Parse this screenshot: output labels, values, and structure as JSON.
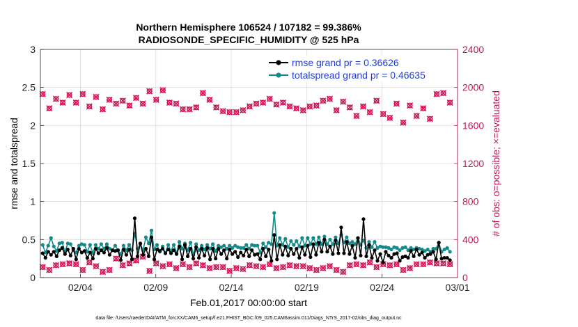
{
  "chart_data": {
    "type": "line",
    "title_line1": "Northern Hemisphere 106524 / 107182 = 99.386%",
    "title_line2": "RADIOSONDE_SPECIFIC_HUMIDITY @ 525 hPa",
    "xlabel": "Feb.01,2017 00:00:00 start",
    "ylabel_left": "rmse and totalspread",
    "ylabel_right": "# of obs: o=possible; ×=evaluated",
    "footer": "data file: /Users/raeder/DAI/ATM_forcXX/CAM6_setup/f.e21.FHIST_BGC.f09_025.CAM6assim.011/Diags_NTrS_2017-02/obs_diag_output.nc",
    "x_ticks": [
      {
        "x": 3,
        "label": "02/04"
      },
      {
        "x": 8,
        "label": "02/09"
      },
      {
        "x": 13,
        "label": "02/14"
      },
      {
        "x": 18,
        "label": "02/19"
      },
      {
        "x": 23,
        "label": "02/24"
      },
      {
        "x": 28,
        "label": "03/01"
      }
    ],
    "xlim": [
      0.35,
      28
    ],
    "ylim_left": [
      0,
      3
    ],
    "ylim_right": [
      0,
      2400
    ],
    "yticks_left": [
      "0",
      "0.5",
      "1",
      "1.5",
      "2",
      "2.5",
      "3"
    ],
    "yticks_right": [
      "0",
      "400",
      "800",
      "1200",
      "1600",
      "2000",
      "2400"
    ],
    "grid": true,
    "legend_position": "top-right",
    "colors": {
      "rmse": "#000000",
      "spread": "#138a8a",
      "obs": "#d4145a",
      "right_axis": "#c2185b",
      "legend_text": "#1f3fd6"
    },
    "series": [
      {
        "name": "rmse grand pr = 0.36626",
        "values": [
          0.32,
          0.26,
          0.34,
          0.3,
          0.34,
          0.28,
          0.36,
          0.39,
          0.31,
          0.37,
          0.29,
          0.38,
          0.24,
          0.38,
          0.33,
          0.35,
          0.26,
          0.33,
          0.25,
          0.38,
          0.32,
          0.36,
          0.33,
          0.39,
          0.3,
          0.36,
          0.35,
          0.36,
          0.23,
          0.37,
          0.3,
          0.37,
          0.24,
          0.78,
          0.28,
          0.45,
          0.3,
          0.38,
          0.28,
          0.53,
          0.24,
          0.37,
          0.35,
          0.38,
          0.32,
          0.37,
          0.32,
          0.36,
          0.31,
          0.41,
          0.24,
          0.43,
          0.28,
          0.38,
          0.25,
          0.4,
          0.26,
          0.38,
          0.29,
          0.39,
          0.24,
          0.38,
          0.25,
          0.38,
          0.31,
          0.36,
          0.25,
          0.37,
          0.31,
          0.34,
          0.27,
          0.33,
          0.29,
          0.37,
          0.28,
          0.36,
          0.3,
          0.31,
          0.24,
          0.38,
          0.28,
          0.37,
          0.22,
          0.56,
          0.24,
          0.43,
          0.3,
          0.41,
          0.29,
          0.38,
          0.31,
          0.38,
          0.26,
          0.4,
          0.3,
          0.42,
          0.27,
          0.44,
          0.3,
          0.46,
          0.34,
          0.5,
          0.34,
          0.41,
          0.31,
          0.49,
          0.32,
          0.66,
          0.32,
          0.47,
          0.31,
          0.42,
          0.26,
          0.52,
          0.29,
          0.77,
          0.28,
          0.43,
          0.26,
          0.36,
          0.22,
          0.31,
          0.2,
          0.34,
          0.29,
          0.26,
          0.31,
          0.32,
          0.22,
          0.27,
          0.28,
          0.26,
          0.35,
          0.28,
          0.37,
          0.3,
          0.33,
          0.26,
          0.3,
          0.31,
          0.34,
          0.24,
          0.46,
          0.25,
          0.26,
          0.26,
          0.23
        ],
        "color": "#000000"
      },
      {
        "name": "totalspread grand pr = 0.46635",
        "values": [
          0.43,
          0.33,
          0.42,
          0.52,
          0.41,
          0.35,
          0.45,
          0.46,
          0.34,
          0.45,
          0.44,
          0.36,
          0.33,
          0.42,
          0.44,
          0.43,
          0.34,
          0.43,
          0.32,
          0.43,
          0.38,
          0.44,
          0.38,
          0.44,
          0.38,
          0.36,
          0.42,
          0.36,
          0.31,
          0.42,
          0.36,
          0.43,
          0.36,
          0.58,
          0.38,
          0.44,
          0.36,
          0.53,
          0.45,
          0.62,
          0.37,
          0.43,
          0.34,
          0.41,
          0.32,
          0.43,
          0.35,
          0.43,
          0.32,
          0.47,
          0.38,
          0.45,
          0.36,
          0.46,
          0.3,
          0.44,
          0.36,
          0.42,
          0.37,
          0.43,
          0.38,
          0.44,
          0.35,
          0.42,
          0.4,
          0.42,
          0.38,
          0.42,
          0.39,
          0.42,
          0.4,
          0.39,
          0.39,
          0.43,
          0.38,
          0.43,
          0.42,
          0.42,
          0.33,
          0.45,
          0.4,
          0.46,
          0.44,
          0.85,
          0.42,
          0.52,
          0.43,
          0.51,
          0.4,
          0.48,
          0.43,
          0.48,
          0.41,
          0.52,
          0.42,
          0.52,
          0.44,
          0.52,
          0.44,
          0.53,
          0.44,
          0.54,
          0.44,
          0.5,
          0.44,
          0.53,
          0.45,
          0.56,
          0.46,
          0.53,
          0.45,
          0.47,
          0.44,
          0.52,
          0.43,
          0.49,
          0.39,
          0.47,
          0.4,
          0.47,
          0.39,
          0.41,
          0.4,
          0.4,
          0.39,
          0.37,
          0.4,
          0.39,
          0.36,
          0.39,
          0.4,
          0.36,
          0.39,
          0.37,
          0.39,
          0.38,
          0.37,
          0.35,
          0.37,
          0.34,
          0.38,
          0.38,
          0.46,
          0.34,
          0.37,
          0.39,
          0.34
        ],
        "color": "#138a8a"
      },
      {
        "name": "possible",
        "values": [
          1930,
          1780,
          1880,
          1840,
          1920,
          1840,
          1930,
          1800,
          1900,
          1770,
          1870,
          1830,
          1860,
          1810,
          1890,
          1830,
          1960,
          1870,
          1970,
          1840,
          1830,
          1770,
          1770,
          1790,
          1940,
          1870,
          1790,
          1750,
          1740,
          1740,
          1760,
          1800,
          1830,
          1840,
          1880,
          1820,
          1840,
          1800,
          1780,
          1760,
          1800,
          1810,
          1860,
          1880,
          1760,
          1850,
          1790,
          1700,
          1800,
          1740,
          1860,
          1720,
          1680,
          1830,
          1630,
          1810,
          1700,
          1780,
          1670,
          1930,
          1940,
          1840
        ],
        "color": "#d4145a"
      },
      {
        "name": "evaluated",
        "values": [
          110,
          80,
          130,
          140,
          150,
          140,
          80,
          160,
          120,
          60,
          80,
          200,
          130,
          150,
          180,
          220,
          70,
          150,
          120,
          140,
          100,
          140,
          110,
          150,
          130,
          100,
          110,
          110,
          70,
          100,
          90,
          130,
          120,
          110,
          140,
          100,
          110,
          130,
          120,
          120,
          100,
          80,
          100,
          120,
          80,
          60,
          130,
          140,
          130,
          160,
          110,
          140,
          130,
          140,
          80,
          100,
          140,
          140,
          160,
          150,
          150,
          140
        ],
        "color": "#d4145a"
      }
    ]
  }
}
